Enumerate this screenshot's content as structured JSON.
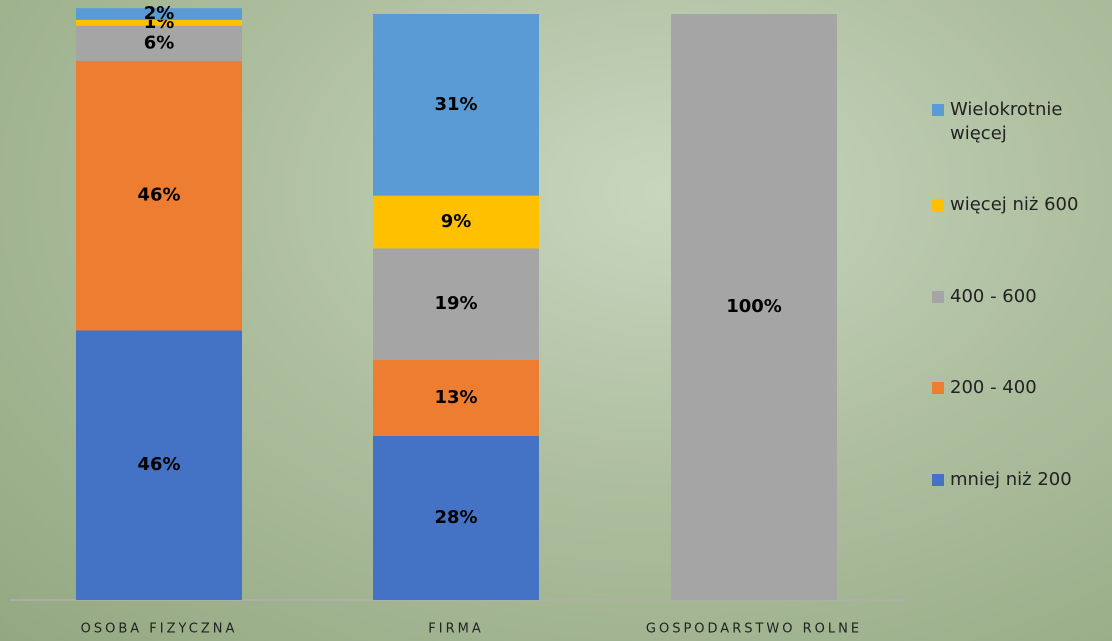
{
  "chart_data": {
    "type": "bar",
    "stacked": true,
    "categories": [
      "OSOBA FIZYCZNA",
      "FIRMA",
      "GOSPODARSTWO ROLNE"
    ],
    "series": [
      {
        "name": "mniej niż 200",
        "color": "#4472c4",
        "values": [
          46,
          28,
          null
        ],
        "value_labels": [
          "46%",
          "28%",
          null
        ]
      },
      {
        "name": "200 - 400",
        "color": "#ed7d31",
        "values": [
          46,
          13,
          null
        ],
        "value_labels": [
          "46%",
          "13%",
          null
        ]
      },
      {
        "name": "400 - 600",
        "color": "#a5a5a5",
        "values": [
          6,
          19,
          100
        ],
        "value_labels": [
          "6%",
          "19%",
          "100%"
        ]
      },
      {
        "name": "więcej niż 600",
        "color": "#ffc000",
        "values": [
          1,
          9,
          null
        ],
        "value_labels": [
          "1%",
          "9%",
          null
        ]
      },
      {
        "name": "Wielokrotnie więcej",
        "color": "#5b9bd5",
        "values": [
          2,
          31,
          null
        ],
        "value_labels": [
          "2%",
          "31%",
          null
        ]
      }
    ]
  }
}
